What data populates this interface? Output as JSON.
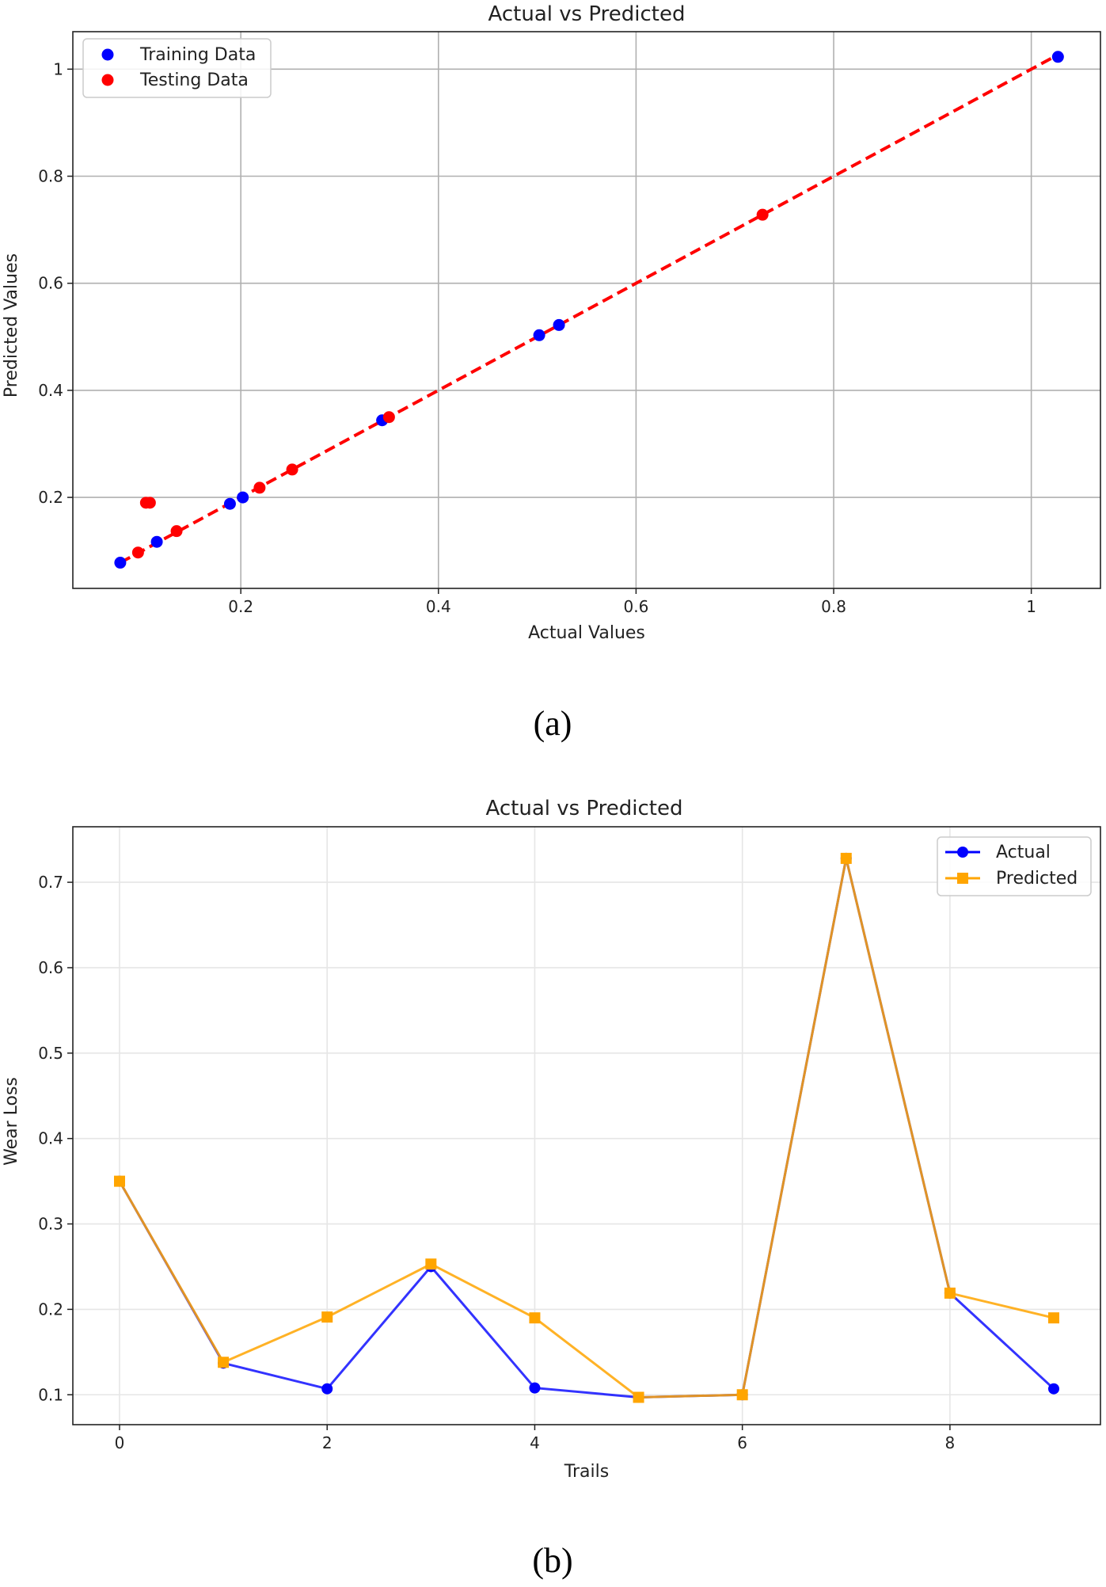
{
  "chart_data": [
    {
      "type": "scatter",
      "caption": "(a)",
      "title": "Actual vs Predicted",
      "xlabel": "Actual Values",
      "ylabel": "Predicted Values",
      "xlim": [
        0.03,
        1.07
      ],
      "ylim": [
        0.03,
        1.07
      ],
      "xticks": [
        0.2,
        0.4,
        0.6,
        0.8,
        1.0
      ],
      "yticks": [
        0.2,
        0.4,
        0.6,
        0.8,
        1.0
      ],
      "grid": true,
      "legend": "top-left",
      "series": [
        {
          "name": "Training Data",
          "color": "#0000ff",
          "points": [
            [
              0.078,
              0.078
            ],
            [
              0.115,
              0.117
            ],
            [
              0.189,
              0.188
            ],
            [
              0.202,
              0.2
            ],
            [
              0.343,
              0.344
            ],
            [
              0.502,
              0.503
            ],
            [
              0.522,
              0.522
            ],
            [
              1.027,
              1.023
            ]
          ]
        },
        {
          "name": "Testing Data",
          "color": "#ff0000",
          "points": [
            [
              0.096,
              0.097
            ],
            [
              0.104,
              0.19
            ],
            [
              0.108,
              0.19
            ],
            [
              0.135,
              0.137
            ],
            [
              0.219,
              0.218
            ],
            [
              0.252,
              0.252
            ],
            [
              0.35,
              0.35
            ],
            [
              0.728,
              0.728
            ]
          ]
        }
      ],
      "reference_line": {
        "from": [
          0.078,
          0.078
        ],
        "to": [
          1.027,
          1.027
        ],
        "color": "#ff0000",
        "style": "dashed"
      }
    },
    {
      "type": "line",
      "caption": "(b)",
      "title": "Actual vs Predicted",
      "xlabel": "Trails",
      "ylabel": "Wear Loss",
      "xlim": [
        -0.45,
        9.45
      ],
      "ylim": [
        0.065,
        0.765
      ],
      "xticks": [
        0,
        2,
        4,
        6,
        8
      ],
      "yticks": [
        0.1,
        0.2,
        0.3,
        0.4,
        0.5,
        0.6,
        0.7
      ],
      "grid": true,
      "legend": "top-right",
      "x": [
        0,
        1,
        2,
        3,
        4,
        5,
        6,
        7,
        8,
        9
      ],
      "series": [
        {
          "name": "Actual",
          "color": "#0000ff",
          "marker": "circle",
          "values": [
            0.35,
            0.137,
            0.107,
            0.25,
            0.108,
            0.097,
            0.1,
            0.728,
            0.219,
            0.107
          ]
        },
        {
          "name": "Predicted",
          "color": "#ffa500",
          "marker": "square",
          "values": [
            0.35,
            0.138,
            0.191,
            0.253,
            0.19,
            0.097,
            0.1,
            0.728,
            0.219,
            0.19
          ]
        }
      ]
    }
  ]
}
